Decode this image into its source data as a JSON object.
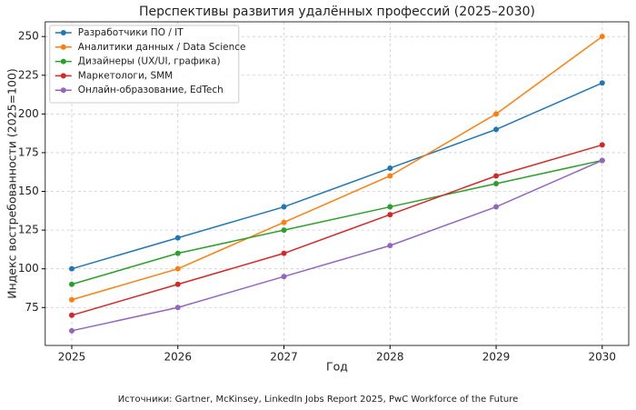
{
  "chart_data": {
    "type": "line",
    "title": "Перспективы развития удалённых профессий (2025–2030)",
    "x_label": "Год",
    "y_label": "Индекс востребованности (2025=100)",
    "note": "Источники: Gartner, McKinsey, LinkedIn Jobs Report 2025, PwC Workforce of the Future",
    "x": [
      2025,
      2026,
      2027,
      2028,
      2029,
      2030
    ],
    "xlim": [
      2024.75,
      2030.25
    ],
    "xticks": [
      2025,
      2026,
      2027,
      2028,
      2029,
      2030
    ],
    "ylim": [
      50.5,
      259.5
    ],
    "yticks": [
      75,
      100,
      125,
      150,
      175,
      200,
      225,
      250
    ],
    "grid": true,
    "legend": "upper left",
    "series": [
      {
        "name": "Разработчики ПО / IT",
        "color": "#1f77b4",
        "values": [
          100,
          120,
          140,
          165,
          190,
          220
        ]
      },
      {
        "name": "Аналитики данных / Data Science",
        "color": "#ff7f0e",
        "values": [
          80,
          100,
          130,
          160,
          200,
          250
        ]
      },
      {
        "name": "Дизайнеры (UX/UI, графика)",
        "color": "#2ca02c",
        "values": [
          90,
          110,
          125,
          140,
          155,
          170
        ]
      },
      {
        "name": "Маркетологи, SMM",
        "color": "#d62728",
        "values": [
          70,
          90,
          110,
          135,
          160,
          180
        ]
      },
      {
        "name": "Онлайн-образование, EdTech",
        "color": "#9467bd",
        "values": [
          60,
          75,
          95,
          115,
          140,
          170
        ]
      }
    ]
  }
}
